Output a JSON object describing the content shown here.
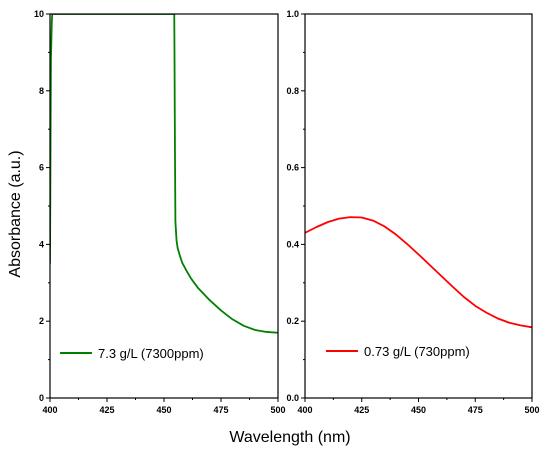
{
  "xlabel": "Wavelength (nm)",
  "ylabel": "Absorbance (a.u.)",
  "chart_data": [
    {
      "type": "line",
      "panel": "left",
      "xlim": [
        400,
        500
      ],
      "ylim": [
        0,
        10
      ],
      "xticks": [
        "400",
        "425",
        "450",
        "475",
        "500"
      ],
      "yticks": [
        "0",
        "2",
        "4",
        "6",
        "8",
        "10"
      ],
      "grid": false,
      "legend_placement": "bottom-left",
      "series": [
        {
          "name": "7.3 g/L (7300ppm)",
          "color": "#008000",
          "x": [
            400,
            400.4,
            400.8,
            401,
            401.5,
            402,
            410,
            430,
            450,
            454.5,
            454.6,
            454.8,
            455,
            455.5,
            456,
            457,
            458,
            460,
            462,
            465,
            470,
            475,
            480,
            485,
            490,
            495,
            500
          ],
          "y": [
            3.5,
            8.8,
            9.8,
            10,
            10,
            10,
            10,
            10,
            10,
            10,
            9.0,
            6.5,
            4.6,
            4.1,
            3.9,
            3.7,
            3.52,
            3.3,
            3.1,
            2.86,
            2.55,
            2.28,
            2.05,
            1.88,
            1.77,
            1.72,
            1.7
          ]
        }
      ]
    },
    {
      "type": "line",
      "panel": "right",
      "xlim": [
        400,
        500
      ],
      "ylim": [
        0,
        1
      ],
      "xticks": [
        "400",
        "425",
        "450",
        "475",
        "500"
      ],
      "yticks": [
        "0.0",
        "0.2",
        "0.4",
        "0.6",
        "0.8",
        "1.0"
      ],
      "grid": false,
      "legend_placement": "bottom-center",
      "series": [
        {
          "name": "0.73 g/L (730ppm)",
          "color": "#ff0000",
          "x": [
            400,
            405,
            410,
            415,
            420,
            425,
            430,
            435,
            440,
            445,
            450,
            455,
            460,
            465,
            470,
            475,
            480,
            485,
            490,
            495,
            500
          ],
          "y": [
            0.43,
            0.445,
            0.458,
            0.467,
            0.471,
            0.47,
            0.462,
            0.447,
            0.426,
            0.401,
            0.374,
            0.346,
            0.318,
            0.29,
            0.263,
            0.24,
            0.222,
            0.207,
            0.196,
            0.189,
            0.184
          ]
        }
      ]
    }
  ]
}
